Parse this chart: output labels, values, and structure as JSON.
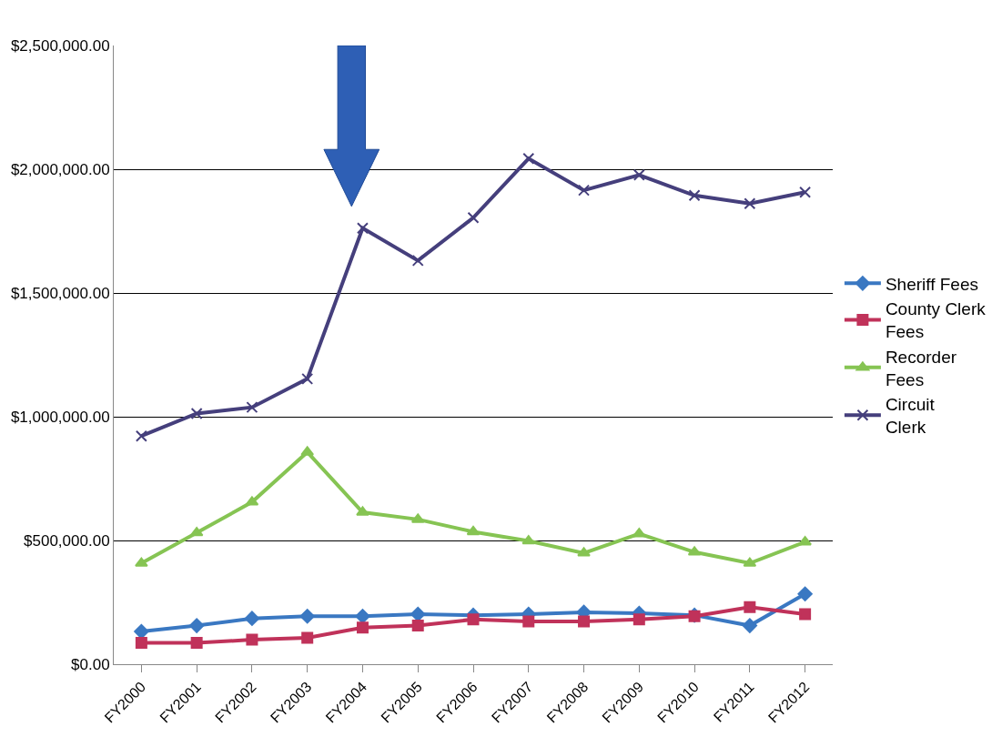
{
  "chart_data": {
    "type": "line",
    "categories": [
      "FY2000",
      "FY2001",
      "FY2002",
      "FY2003",
      "FY2004",
      "FY2005",
      "FY2006",
      "FY2007",
      "FY2008",
      "FY2009",
      "FY2010",
      "FY2011",
      "FY2012"
    ],
    "series": [
      {
        "name": "Sheriff Fees",
        "color": "#3a78c2",
        "marker": "diamond",
        "values": [
          132000,
          156000,
          185000,
          194000,
          194000,
          202000,
          198000,
          202000,
          210000,
          206000,
          198000,
          156000,
          284000
        ]
      },
      {
        "name": "County Clerk Fees",
        "color": "#c0325a",
        "marker": "square",
        "values": [
          86000,
          86000,
          99000,
          107000,
          148000,
          156000,
          181000,
          173000,
          173000,
          181000,
          194000,
          231000,
          202000
        ]
      },
      {
        "name": "Recorder Fees",
        "color": "#86c453",
        "marker": "triangle",
        "values": [
          408000,
          531000,
          655000,
          857000,
          614000,
          585000,
          535000,
          498000,
          449000,
          527000,
          453000,
          408000,
          494000
        ]
      },
      {
        "name": "Circuit Clerk",
        "color": "#453f7c",
        "marker": "cross",
        "values": [
          922000,
          1013000,
          1038000,
          1153000,
          1762000,
          1631000,
          1804000,
          2043000,
          1915000,
          1977000,
          1894000,
          1861000,
          1907000
        ]
      }
    ],
    "ylim": [
      0,
      2500000
    ],
    "yticks": [
      {
        "value": 0,
        "label": "$0.00"
      },
      {
        "value": 500000,
        "label": "$500,000.00"
      },
      {
        "value": 1000000,
        "label": "$1,000,000.00"
      },
      {
        "value": 1500000,
        "label": "$1,500,000.00"
      },
      {
        "value": 2000000,
        "label": "$2,000,000.00"
      },
      {
        "value": 2500000,
        "label": "$2,500,000.00"
      }
    ],
    "grid": "y",
    "legend": "right"
  }
}
